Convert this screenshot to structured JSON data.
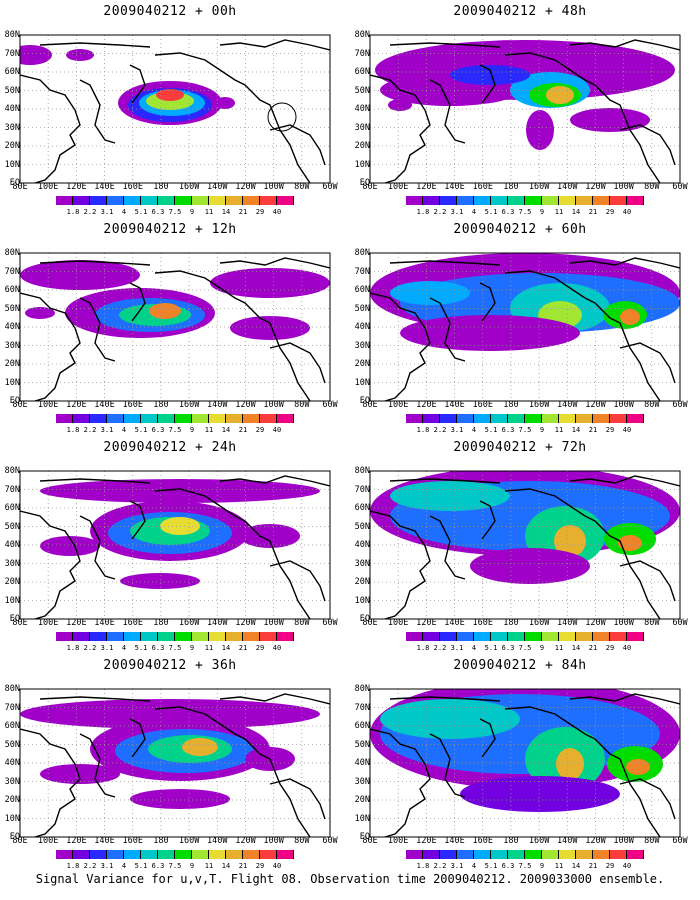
{
  "caption": "Signal Variance for u,v,T. Flight 08. Observation time 2009040212. 2009033000 ensemble.",
  "lon_labels": [
    "80E",
    "100E",
    "120E",
    "140E",
    "160E",
    "180",
    "160W",
    "140W",
    "120W",
    "100W",
    "80W",
    "60W"
  ],
  "lat_labels": [
    "80N",
    "70N",
    "60N",
    "50N",
    "40N",
    "30N",
    "20N",
    "10N",
    "EQ"
  ],
  "colorbar": {
    "labels": [
      "1.8",
      "2.2",
      "3.1",
      "4",
      "5.1",
      "6.3",
      "7.5",
      "9",
      "11",
      "14",
      "21",
      "29",
      "40"
    ],
    "colors": [
      "#a000c8",
      "#7300e0",
      "#2828ff",
      "#1e6eff",
      "#00aaff",
      "#00c8c8",
      "#00d28c",
      "#00dc00",
      "#a0e632",
      "#e6dc32",
      "#e6af2d",
      "#f08228",
      "#fa3c3c",
      "#f00082"
    ]
  },
  "panels": [
    {
      "title": "2009040212 + 00h"
    },
    {
      "title": "2009040212 + 48h"
    },
    {
      "title": "2009040212 + 12h"
    },
    {
      "title": "2009040212 + 60h"
    },
    {
      "title": "2009040212 + 24h"
    },
    {
      "title": "2009040212 + 72h"
    },
    {
      "title": "2009040212 + 36h"
    },
    {
      "title": "2009040212 + 84h"
    }
  ]
}
